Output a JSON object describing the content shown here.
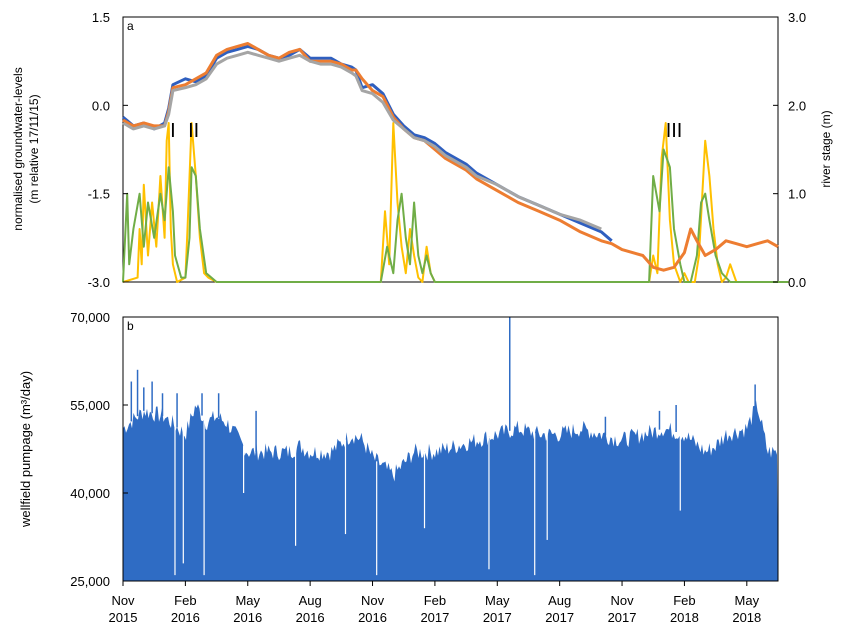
{
  "chart_data": [
    {
      "panel": "a",
      "type": "line",
      "ylabel_lines": [
        "normalised groundwater-levels",
        "(m relative 17/11/15)"
      ],
      "y2label": "river stage (m)",
      "ylim": [
        -3.0,
        1.5
      ],
      "yticks": [
        "-3.0",
        "-1.5",
        "0.0",
        "1.5"
      ],
      "y2lim": [
        0.0,
        3.0
      ],
      "y2ticks": [
        "0.0",
        "1.0",
        "2.0",
        "3.0"
      ],
      "flood_event_labels": [
        {
          "label": "I",
          "x": 2.4
        },
        {
          "label": "II",
          "x": 3.4
        },
        {
          "label": "III",
          "x": 26.5
        }
      ],
      "series": [
        {
          "color": "#2f5fbf",
          "axis": "left",
          "x": [
            0,
            0.5,
            1,
            1.5,
            2,
            2.2,
            2.4,
            3,
            3.5,
            4,
            4.5,
            5,
            5.5,
            6,
            6.5,
            7,
            7.5,
            8,
            8.5,
            9,
            9.5,
            10,
            10.5,
            11,
            11.2,
            11.5,
            12,
            12.5,
            13,
            13.5,
            14,
            14.5,
            15,
            15.5,
            16,
            16.5,
            17,
            18,
            19,
            20,
            21,
            22,
            23,
            23.5
          ],
          "y": [
            -0.2,
            -0.35,
            -0.3,
            -0.4,
            -0.3,
            -0.05,
            0.35,
            0.45,
            0.4,
            0.5,
            0.8,
            0.9,
            0.95,
            1.0,
            0.95,
            0.85,
            0.8,
            0.85,
            0.95,
            0.8,
            0.8,
            0.8,
            0.7,
            0.65,
            0.6,
            0.3,
            0.35,
            0.2,
            -0.15,
            -0.35,
            -0.5,
            -0.55,
            -0.65,
            -0.8,
            -0.9,
            -1.0,
            -1.15,
            -1.35,
            -1.55,
            -1.7,
            -1.85,
            -2.0,
            -2.15,
            -2.3
          ]
        },
        {
          "color": "#ed7d31",
          "axis": "left",
          "x": [
            0,
            0.5,
            1,
            1.5,
            2,
            2.2,
            2.4,
            3,
            3.5,
            4,
            4.5,
            5,
            5.5,
            6,
            6.5,
            7,
            7.5,
            8,
            8.5,
            9,
            9.5,
            10,
            10.5,
            11,
            11.2,
            11.5,
            12,
            12.5,
            13,
            13.5,
            14,
            14.5,
            15,
            15.5,
            16,
            16.5,
            17,
            18,
            19,
            20,
            21,
            22,
            23,
            23.5,
            24,
            25,
            25.5,
            26,
            26.5,
            27,
            27.3,
            27.6,
            28,
            28.5,
            29,
            29.5,
            30,
            30.5,
            31,
            31.5
          ],
          "y": [
            -0.25,
            -0.35,
            -0.3,
            -0.35,
            -0.35,
            -0.1,
            0.3,
            0.35,
            0.45,
            0.55,
            0.85,
            0.95,
            1.0,
            1.05,
            0.95,
            0.85,
            0.8,
            0.9,
            0.95,
            0.75,
            0.75,
            0.75,
            0.7,
            0.6,
            0.6,
            0.45,
            0.25,
            0.15,
            -0.2,
            -0.4,
            -0.55,
            -0.6,
            -0.75,
            -0.9,
            -1.0,
            -1.1,
            -1.25,
            -1.45,
            -1.65,
            -1.8,
            -1.95,
            -2.15,
            -2.3,
            -2.35,
            -2.45,
            -2.55,
            -2.75,
            -2.8,
            -2.75,
            -2.5,
            -2.1,
            -2.3,
            -2.55,
            -2.45,
            -2.3,
            -2.35,
            -2.4,
            -2.35,
            -2.3,
            -2.4
          ]
        },
        {
          "color": "#a5a5a5",
          "axis": "left",
          "x": [
            0,
            0.5,
            1,
            1.5,
            2,
            2.2,
            2.4,
            3,
            3.5,
            4,
            4.5,
            5,
            5.5,
            6,
            6.5,
            7,
            7.5,
            8,
            8.5,
            9,
            9.5,
            10,
            10.5,
            11,
            11.2,
            11.5,
            12,
            12.5,
            13,
            13.5,
            14,
            14.5,
            15,
            15.5,
            16,
            16.5,
            17,
            18,
            19,
            20,
            21,
            22,
            23
          ],
          "y": [
            -0.3,
            -0.4,
            -0.35,
            -0.4,
            -0.35,
            -0.15,
            0.25,
            0.3,
            0.35,
            0.45,
            0.7,
            0.8,
            0.85,
            0.9,
            0.85,
            0.8,
            0.75,
            0.8,
            0.85,
            0.75,
            0.7,
            0.7,
            0.65,
            0.55,
            0.5,
            0.25,
            0.2,
            0.05,
            -0.25,
            -0.4,
            -0.55,
            -0.6,
            -0.7,
            -0.85,
            -0.95,
            -1.05,
            -1.2,
            -1.35,
            -1.55,
            -1.7,
            -1.85,
            -1.95,
            -2.1
          ]
        },
        {
          "color": "#ffc000",
          "axis": "right",
          "x": [
            0,
            0.7,
            0.8,
            0.9,
            1.0,
            1.2,
            1.4,
            1.6,
            1.8,
            2.0,
            2.1,
            2.2,
            2.3,
            2.4,
            2.6,
            3.0,
            3.1,
            3.3,
            3.5,
            3.7,
            3.9,
            4.1,
            4.5,
            12.4,
            12.6,
            12.8,
            13.0,
            13.2,
            13.4,
            13.6,
            13.8,
            14.0,
            14.2,
            14.4,
            14.6,
            14.8,
            15.0,
            15.2,
            25.3,
            25.5,
            25.7,
            25.9,
            26.1,
            26.3,
            26.5,
            26.8,
            27.0,
            27.2,
            27.5,
            27.7,
            28.0,
            28.2,
            28.4,
            28.6,
            28.8,
            29.0,
            29.2,
            29.5,
            32
          ],
          "y": [
            0,
            0.05,
            0.6,
            0.2,
            1.1,
            0.3,
            0.9,
            0.4,
            1.2,
            0.5,
            1.6,
            1.8,
            0.6,
            0.2,
            0,
            0.05,
            0.6,
            1.8,
            1.2,
            0.5,
            0.1,
            0.05,
            0,
            0,
            0.8,
            0.2,
            1.8,
            0.9,
            0.4,
            0.1,
            0.6,
            0.3,
            0.05,
            0,
            0.4,
            0.1,
            0,
            0,
            0,
            0.3,
            0.1,
            1.4,
            1.8,
            0.7,
            0.2,
            0,
            0.1,
            0,
            0,
            0.3,
            1.6,
            1.2,
            0.6,
            0.2,
            0,
            0.05,
            0.2,
            0,
            0
          ]
        },
        {
          "color": "#70ad47",
          "axis": "right",
          "x": [
            0,
            0.2,
            0.3,
            0.5,
            0.8,
            1.0,
            1.2,
            1.5,
            1.8,
            2.0,
            2.2,
            2.4,
            2.5,
            2.8,
            3.0,
            3.2,
            3.3,
            3.5,
            3.7,
            4.0,
            4.5,
            12.4,
            12.7,
            13.0,
            13.2,
            13.4,
            13.6,
            13.8,
            14.0,
            14.2,
            14.4,
            14.6,
            14.8,
            15.0,
            15.2,
            25.3,
            25.5,
            25.8,
            26.0,
            26.3,
            26.5,
            26.8,
            27.0,
            27.3,
            27.6,
            27.8,
            28.0,
            28.2,
            28.5,
            28.8,
            29.2,
            32
          ],
          "y": [
            0,
            1.0,
            0.2,
            0.6,
            1.0,
            0.4,
            0.9,
            0.5,
            1.0,
            0.7,
            1.3,
            0.8,
            0.3,
            0.05,
            0.05,
            0.5,
            1.3,
            1.2,
            0.6,
            0.1,
            0,
            0,
            0.4,
            0.1,
            0.7,
            1.0,
            0.5,
            0.2,
            0.9,
            0.3,
            0.1,
            0.3,
            0.1,
            0,
            0,
            0,
            1.2,
            0.8,
            1.5,
            1.3,
            0.6,
            0.2,
            0,
            0,
            0.3,
            0.9,
            1.0,
            0.7,
            0.3,
            0.1,
            0,
            0
          ]
        }
      ]
    },
    {
      "panel": "b",
      "type": "bar",
      "ylabel": "wellfield  pumpage  (m³/day)",
      "ylim": [
        25000,
        70000
      ],
      "yticks": [
        "25,000",
        "40,000",
        "55,000",
        "70,000"
      ],
      "xtick_labels": [
        [
          "Nov",
          "2015"
        ],
        [
          "Feb",
          "2016"
        ],
        [
          "May",
          "2016"
        ],
        [
          "Aug",
          "2016"
        ],
        [
          "Nov",
          "2016"
        ],
        [
          "Feb",
          "2017"
        ],
        [
          "May",
          "2017"
        ],
        [
          "Aug",
          "2017"
        ],
        [
          "Nov",
          "2017"
        ],
        [
          "Feb",
          "2018"
        ],
        [
          "May",
          "2018"
        ]
      ],
      "color": "#2f6cc4",
      "x_unit": "months since Nov 2015",
      "baseline": [
        [
          0,
          51000
        ],
        [
          1,
          54000
        ],
        [
          2,
          53000
        ],
        [
          3,
          50000
        ],
        [
          3.5,
          55000
        ],
        [
          4,
          52000
        ],
        [
          4.5,
          53000
        ],
        [
          5,
          52000
        ],
        [
          6,
          47000
        ],
        [
          7,
          47000
        ],
        [
          8,
          47000
        ],
        [
          8.5,
          48000
        ],
        [
          9,
          47000
        ],
        [
          10,
          47000
        ],
        [
          11,
          50000
        ],
        [
          11.5,
          49000
        ],
        [
          12,
          46000
        ],
        [
          13,
          43000
        ],
        [
          13.5,
          45000
        ],
        [
          14,
          47000
        ],
        [
          15,
          47000
        ],
        [
          16,
          48000
        ],
        [
          17,
          49000
        ],
        [
          18,
          50000
        ],
        [
          19,
          51000
        ],
        [
          20,
          50000
        ],
        [
          21,
          50000
        ],
        [
          22,
          51000
        ],
        [
          23,
          50000
        ],
        [
          24,
          49000
        ],
        [
          25,
          50000
        ],
        [
          26,
          51000
        ],
        [
          27,
          50000
        ],
        [
          28,
          47000
        ],
        [
          28.5,
          48000
        ],
        [
          29,
          50000
        ],
        [
          30,
          51000
        ],
        [
          30.5,
          55000
        ],
        [
          31,
          47000
        ],
        [
          32,
          47000
        ]
      ],
      "spikes_up": [
        [
          0.4,
          59000
        ],
        [
          0.7,
          61000
        ],
        [
          1.0,
          58000
        ],
        [
          1.4,
          59000
        ],
        [
          1.9,
          57000
        ],
        [
          2.6,
          57000
        ],
        [
          3.8,
          57000
        ],
        [
          4.6,
          57000
        ],
        [
          6.4,
          54000
        ],
        [
          18.6,
          70000
        ],
        [
          23.2,
          53000
        ],
        [
          25.8,
          54000
        ],
        [
          26.6,
          55000
        ],
        [
          30.4,
          58500
        ]
      ],
      "spikes_down": [
        [
          2.5,
          26000
        ],
        [
          2.9,
          28000
        ],
        [
          3.9,
          26000
        ],
        [
          5.8,
          40000
        ],
        [
          8.3,
          31000
        ],
        [
          10.7,
          33000
        ],
        [
          12.2,
          26000
        ],
        [
          14.5,
          34000
        ],
        [
          17.6,
          27000
        ],
        [
          19.8,
          26000
        ],
        [
          20.4,
          32000
        ],
        [
          26.8,
          37000
        ]
      ]
    }
  ]
}
